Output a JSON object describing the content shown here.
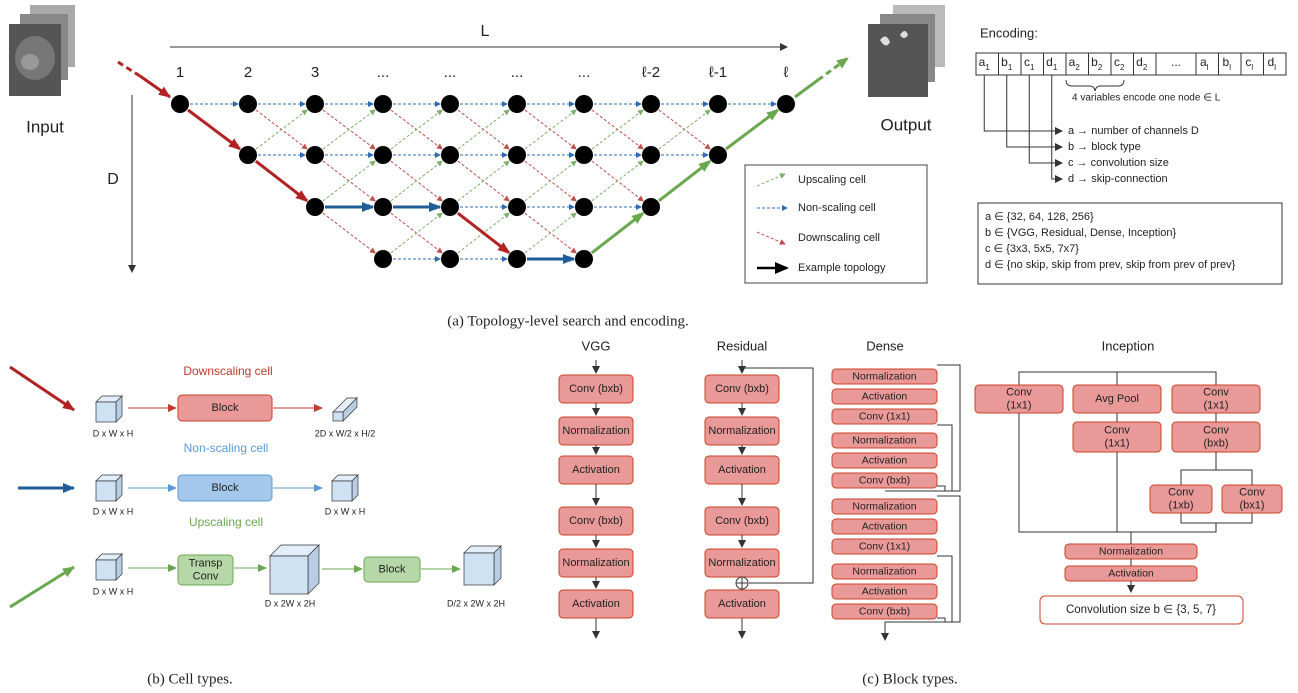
{
  "topology": {
    "input_label": "Input",
    "output_label": "Output",
    "length_axis": "L",
    "depth_axis": "D",
    "columns": [
      "1",
      "2",
      "3",
      "...",
      "...",
      "...",
      "...",
      "ℓ-2",
      "ℓ-1",
      "ℓ"
    ],
    "legend": [
      "Upscaling cell",
      "Non-scaling cell",
      "Downscaling cell",
      "Example topology"
    ],
    "caption": "(a) Topology-level search and encoding."
  },
  "encoding": {
    "title": "Encoding:",
    "cells": [
      {
        "letter": "a",
        "sub": "1"
      },
      {
        "letter": "b",
        "sub": "1"
      },
      {
        "letter": "c",
        "sub": "1"
      },
      {
        "letter": "d",
        "sub": "1"
      },
      {
        "letter": "a",
        "sub": "2"
      },
      {
        "letter": "b",
        "sub": "2"
      },
      {
        "letter": "c",
        "sub": "2"
      },
      {
        "letter": "d",
        "sub": "2"
      },
      {
        "letter": "..."
      },
      {
        "letter": "a",
        "sub": "l"
      },
      {
        "letter": "b",
        "sub": "l"
      },
      {
        "letter": "c",
        "sub": "l"
      },
      {
        "letter": "d",
        "sub": "l"
      }
    ],
    "note": "4 variables encode one node ∈ L",
    "mappings": [
      "a → number of channels D",
      "b → block type",
      "c → convolution size",
      "d → skip-connection"
    ],
    "domains": [
      "a ∈ {32, 64, 128, 256}",
      "b ∈ {VGG, Residual, Dense, Inception}",
      "c ∈ {3x3, 5x5, 7x7}",
      "d ∈ {no skip, skip from prev, skip from prev of prev}"
    ]
  },
  "cell_types": {
    "rows": [
      {
        "title": "Downscaling cell",
        "input": "D x W x H",
        "block": [
          "Block"
        ],
        "output": "2D x W/2 x H/2"
      },
      {
        "title": "Non-scaling cell",
        "input": "D x W x H",
        "block": [
          "Block"
        ],
        "output": "D x W x H"
      },
      {
        "title": "Upscaling cell",
        "input": "D x W x H",
        "transp": [
          "Transp",
          "Conv"
        ],
        "middle": "D x 2W x 2H",
        "block": [
          "Block"
        ],
        "output": "D/2 x 2W x 2H"
      }
    ],
    "caption": "(b) Cell types."
  },
  "block_types": {
    "vgg": {
      "title": "VGG",
      "layers": [
        "Conv (bxb)",
        "Normalization",
        "Activation",
        "Conv (bxb)",
        "Normalization",
        "Activation"
      ]
    },
    "residual": {
      "title": "Residual",
      "layers": [
        "Conv (bxb)",
        "Normalization",
        "Activation",
        "Conv (bxb)",
        "Normalization",
        "Activation"
      ]
    },
    "dense": {
      "title": "Dense",
      "layers": [
        "Normalization",
        "Activation",
        "Conv (1x1)",
        "Normalization",
        "Activation",
        "Conv (bxb)",
        "Normalization",
        "Activation",
        "Conv (1x1)",
        "Normalization",
        "Activation",
        "Conv (bxb)"
      ]
    },
    "inception": {
      "title": "Inception",
      "boxes": [
        [
          "Conv",
          "(1x1)"
        ],
        [
          "Avg Pool"
        ],
        [
          "Conv",
          "(1x1)"
        ],
        [
          "Conv",
          "(1x1)"
        ],
        [
          "Conv",
          "(bxb)"
        ],
        [
          "Conv",
          "(1xb)"
        ],
        [
          "Conv",
          "(bx1)"
        ],
        [
          "Normalization"
        ],
        [
          "Activation"
        ]
      ],
      "note": "Convolution size b ∈ {3, 5, 7}"
    },
    "caption": "(c) Block types."
  }
}
